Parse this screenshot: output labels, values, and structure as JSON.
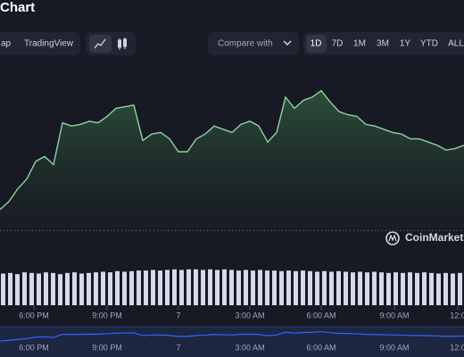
{
  "header": {
    "title": "Chart"
  },
  "toolbar": {
    "views": [
      "ap",
      "TradingView"
    ],
    "compare": "Compare with",
    "ranges": [
      "1D",
      "7D",
      "1M",
      "3M",
      "1Y",
      "YTD",
      "ALL"
    ],
    "selected_range": "1D"
  },
  "watermark": "CoinMarketC",
  "chart_data": {
    "type": "line",
    "color": "#8fd39f",
    "values": [
      14,
      19,
      27,
      33,
      44,
      47,
      42,
      68,
      66,
      67,
      69,
      68,
      72,
      77,
      78,
      79,
      57,
      61,
      62,
      58,
      50,
      50,
      58,
      61,
      66,
      64,
      62,
      67,
      69,
      66,
      56,
      62,
      84,
      77,
      82,
      84,
      88,
      81,
      75,
      73,
      72,
      67,
      66,
      64,
      62,
      61,
      58,
      58,
      56,
      54,
      51,
      52,
      54
    ],
    "ylim": [
      0,
      100
    ],
    "xlim": [
      0,
      52
    ],
    "reference": 1,
    "xticks": [
      {
        "value": 3.8,
        "label": "6:00 PM"
      },
      {
        "value": 12,
        "label": "9:00 PM"
      },
      {
        "value": 20,
        "label": "7"
      },
      {
        "value": 28,
        "label": "3:00 AM"
      },
      {
        "value": 36,
        "label": "6:00 AM"
      },
      {
        "value": 44.2,
        "label": "9:00 AM"
      },
      {
        "value": 51.3,
        "label": "12:0"
      }
    ],
    "volume": {
      "color": "#d5dae6",
      "ylim": [
        0,
        100
      ],
      "values": [
        53,
        54,
        52,
        55,
        54,
        53,
        55,
        54,
        52,
        54,
        55,
        53,
        54,
        55,
        56,
        55,
        57,
        56,
        57,
        58,
        58,
        59,
        58,
        59,
        60,
        59,
        60,
        60,
        59,
        60,
        59,
        60,
        59,
        58,
        59,
        58,
        59,
        58,
        58,
        57,
        58,
        57,
        58,
        57,
        56,
        57,
        56,
        57,
        56,
        55,
        56,
        55,
        56,
        55,
        54,
        55,
        54,
        55,
        54,
        55,
        54,
        53,
        54,
        53,
        54
      ]
    },
    "navigator_color": "#3861fb"
  }
}
